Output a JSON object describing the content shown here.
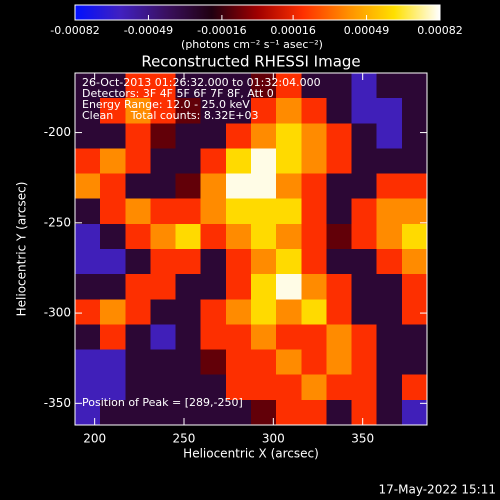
{
  "chart_data": {
    "type": "heatmap",
    "title": "Reconstructed RHESSI Image",
    "xlabel": "Heliocentric X (arcsec)",
    "ylabel": "Heliocentric Y (arcsec)",
    "xlim": [
      189,
      386
    ],
    "ylim": [
      -362,
      -167
    ],
    "xticks": [
      200,
      250,
      300,
      350
    ],
    "yticks": [
      -200,
      -250,
      -300,
      -350
    ],
    "colorbar_label": "(photons cm⁻² s⁻¹ asec⁻²)",
    "clim": [
      -0.00082,
      0.00082
    ],
    "cticks": [
      -0.00082,
      -0.00049,
      -0.00016,
      0.00016,
      0.00049,
      0.00082
    ],
    "colorscale": [
      "#0010ff",
      "#4020c0",
      "#3a1060",
      "#200010",
      "#a00000",
      "#ff3000",
      "#ff9000",
      "#ffe000",
      "#ffffff"
    ],
    "annotations": [
      "26-Oct-2013 01:26:32.000 to 01:32:04.000",
      "Detectors: 3F 4F 5F 6F 7F 8F, Att 0",
      "Energy Range: 12.0 - 25.0 keV",
      "Clean     Total counts: 8.32E+03"
    ],
    "peak_label": "Position of Peak = [289,-250]",
    "footer": "17-May-2022 15:11",
    "z": [
      [
        -0.0003,
        -0.0003,
        0.0002,
        0.0002,
        -0.0003,
        -0.0003,
        -0.0003,
        -0.0001,
        0.0002,
        -0.0003,
        -0.0003,
        -0.0006,
        -0.0003,
        -0.0003
      ],
      [
        -0.0003,
        0.0002,
        0.0004,
        0.0002,
        -0.0001,
        -0.0003,
        -0.0003,
        0.0002,
        0.0004,
        0.0002,
        -0.0003,
        -0.0006,
        -0.0006,
        -0.0003
      ],
      [
        -0.0003,
        -0.0003,
        0.0002,
        -0.0001,
        -0.0003,
        -0.0003,
        0.0002,
        0.0004,
        0.0006,
        0.0004,
        0.0002,
        -0.0003,
        -0.0006,
        -0.0003
      ],
      [
        0.0002,
        0.0004,
        0.0002,
        -0.0003,
        -0.0003,
        0.0002,
        0.0006,
        0.0008,
        0.0006,
        0.0004,
        0.0002,
        -0.0003,
        -0.0003,
        -0.0003
      ],
      [
        0.0004,
        0.0002,
        -0.0003,
        -0.0003,
        -0.0001,
        0.0004,
        0.0008,
        0.0008,
        0.0004,
        0.0002,
        -0.0003,
        -0.0003,
        0.0002,
        0.0002
      ],
      [
        -0.0003,
        0.0002,
        0.0004,
        0.0002,
        0.0002,
        0.0004,
        0.0006,
        0.0006,
        0.0006,
        0.0002,
        -0.0003,
        0.0002,
        0.0004,
        0.0004
      ],
      [
        -0.0006,
        -0.0003,
        0.0002,
        0.0004,
        0.0006,
        0.0002,
        0.0004,
        0.0006,
        0.0004,
        0.0002,
        -0.0001,
        0.0002,
        0.0004,
        0.0006
      ],
      [
        -0.0006,
        -0.0006,
        -0.0003,
        0.0002,
        0.0002,
        -0.0003,
        0.0002,
        0.0004,
        0.0006,
        0.0002,
        -0.0003,
        -0.0003,
        0.0002,
        0.0004
      ],
      [
        -0.0003,
        -0.0003,
        0.0002,
        0.0002,
        -0.0003,
        -0.0003,
        0.0002,
        0.0006,
        0.0008,
        0.0004,
        0.0002,
        -0.0003,
        -0.0003,
        0.0002
      ],
      [
        0.0002,
        0.0004,
        0.0002,
        -0.0003,
        -0.0003,
        0.0002,
        0.0004,
        0.0006,
        0.0004,
        0.0006,
        0.0002,
        -0.0003,
        -0.0003,
        0.0002
      ],
      [
        -0.0003,
        0.0002,
        -0.0003,
        -0.0006,
        -0.0003,
        0.0002,
        0.0002,
        0.0004,
        0.0002,
        0.0002,
        0.0004,
        0.0002,
        -0.0003,
        -0.0003
      ],
      [
        -0.0006,
        -0.0006,
        -0.0003,
        -0.0003,
        -0.0003,
        -0.0001,
        0.0002,
        0.0002,
        0.0004,
        0.0002,
        0.0004,
        0.0002,
        -0.0003,
        -0.0003
      ],
      [
        -0.0006,
        -0.0006,
        -0.0003,
        -0.0003,
        -0.0003,
        -0.0003,
        0.0002,
        0.0002,
        0.0002,
        0.0004,
        0.0002,
        0.0002,
        -0.0003,
        0.0002
      ],
      [
        -0.0006,
        -0.0003,
        -0.0003,
        -0.0003,
        -0.0003,
        -0.0003,
        -0.0003,
        -0.0001,
        0.0002,
        0.0002,
        -0.0003,
        0.0002,
        -0.0003,
        -0.0006
      ]
    ]
  }
}
